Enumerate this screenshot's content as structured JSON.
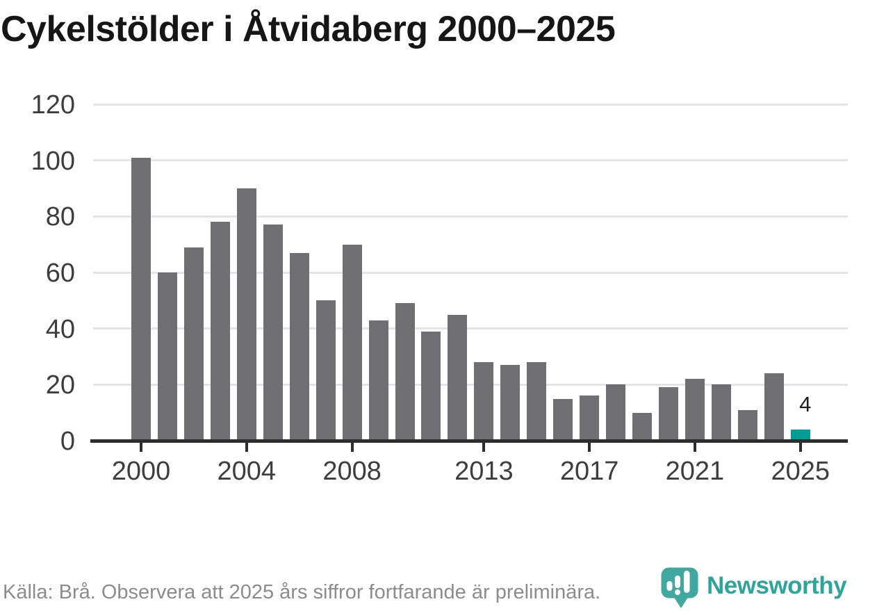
{
  "chart_data": {
    "type": "bar",
    "title": "Cykelstölder i Åtvidaberg 2000–2025",
    "categories": [
      2000,
      2001,
      2002,
      2003,
      2004,
      2005,
      2006,
      2007,
      2008,
      2009,
      2010,
      2011,
      2012,
      2013,
      2014,
      2015,
      2016,
      2017,
      2018,
      2019,
      2020,
      2021,
      2022,
      2023,
      2024,
      2025
    ],
    "values": [
      101,
      60,
      69,
      78,
      90,
      77,
      67,
      50,
      70,
      43,
      49,
      39,
      45,
      28,
      27,
      28,
      15,
      16,
      20,
      10,
      19,
      22,
      20,
      11,
      24,
      4
    ],
    "xlabel": "",
    "ylabel": "",
    "ylim": [
      0,
      120
    ],
    "yticks": [
      0,
      20,
      40,
      60,
      80,
      100,
      120
    ],
    "xtick_labels": [
      "2000",
      "2004",
      "2008",
      "2013",
      "2017",
      "2021",
      "2025"
    ],
    "grid": "horizontal-only",
    "legend": "none",
    "highlight_year": 2025,
    "highlight_value_label": "4"
  },
  "footer": {
    "source_note": "Källa: Brå. Observera att 2025 års siffror fortfarande är preliminära."
  },
  "logo": {
    "brand": "Newsworthy",
    "icon": "newsworthy-pin-bar-chart-icon"
  },
  "colors": {
    "bar": "#6e6e73",
    "highlight": "#009c96",
    "gridline": "#e4e4e4",
    "axis": "#2d2d2d",
    "tick_label": "#3d3d3d",
    "title": "#161616",
    "source_text": "#8c8c8c",
    "brand_text": "#2ea49b",
    "brand_icon": "#41a89f"
  }
}
